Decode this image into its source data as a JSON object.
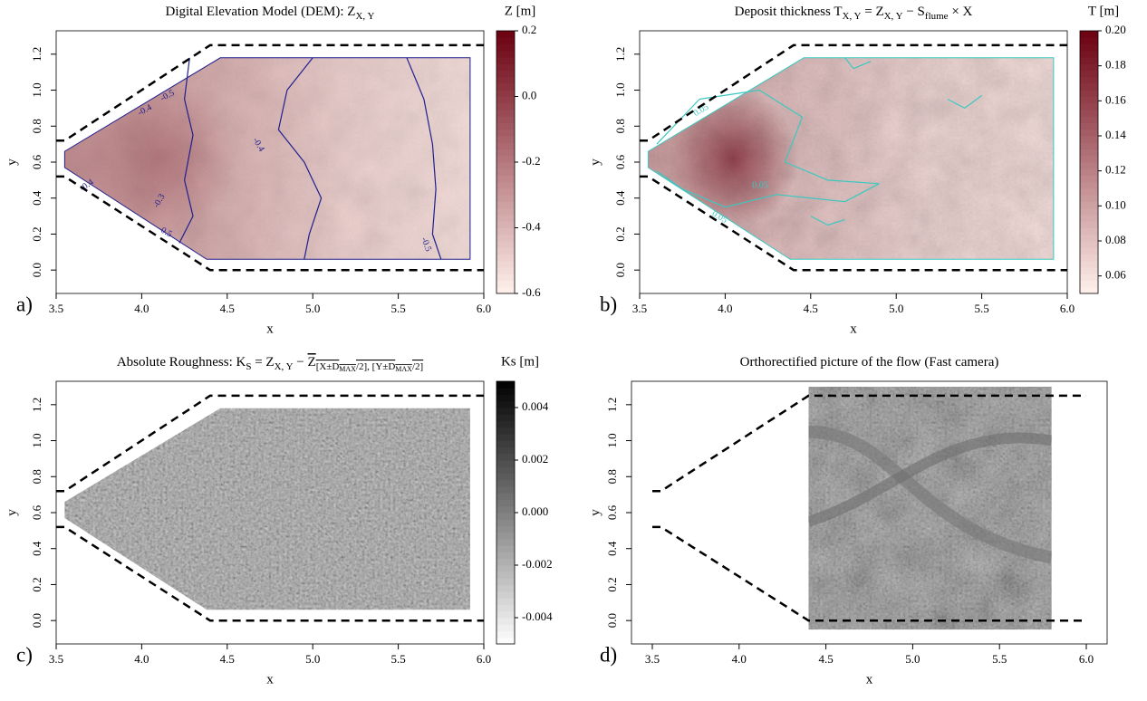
{
  "chart_data": [
    {
      "type": "heatmap",
      "panel_label": "a)",
      "title": [
        {
          "text": "Digital Elevation Model (DEM): Z"
        },
        {
          "text": "X, Y",
          "sub": 1
        }
      ],
      "xlabel": "x",
      "ylabel": "y",
      "xlim": [
        3.5,
        6.0
      ],
      "ylim": [
        -0.13,
        1.33
      ],
      "xticks": [
        3.5,
        {
          "value": 4,
          "label": "4.0"
        },
        4.5,
        {
          "value": 5,
          "label": "5.0"
        },
        5.5,
        {
          "value": 6,
          "label": "6.0"
        }
      ],
      "yticks": [
        {
          "value": 0,
          "label": "0.0"
        },
        0.2,
        0.4,
        0.6,
        0.8,
        {
          "value": 1,
          "label": "1.0"
        },
        1.2
      ],
      "colorbar": {
        "title": "Z [m]",
        "lim": [
          -0.6,
          0.2
        ],
        "colors": [
          "#fff1ec",
          "#6b0010"
        ],
        "ticks": [
          -0.6,
          -0.4,
          -0.2,
          {
            "value": 0,
            "label": "0.0"
          },
          0.2
        ]
      },
      "contour_color": "#1f1f8f",
      "contour_labels": [
        "-0.5",
        "-0.4",
        "-0.4",
        "-0.3",
        "-0.4",
        "-0.5",
        "-0.5"
      ]
    },
    {
      "type": "heatmap",
      "panel_label": "b)",
      "title": [
        {
          "text": "Deposit thickness T"
        },
        {
          "text": "X, Y",
          "sub": 1
        },
        {
          "text": " = Z"
        },
        {
          "text": "X, Y",
          "sub": 1
        },
        {
          "text": " − S"
        },
        {
          "text": "flume",
          "sub": 1
        },
        {
          "text": " × X"
        }
      ],
      "xlabel": "x",
      "ylabel": "y",
      "xlim": [
        3.5,
        6.0
      ],
      "ylim": [
        -0.13,
        1.33
      ],
      "xticks": [
        3.5,
        {
          "value": 4,
          "label": "4.0"
        },
        4.5,
        {
          "value": 5,
          "label": "5.0"
        },
        5.5,
        {
          "value": 6,
          "label": "6.0"
        }
      ],
      "yticks": [
        {
          "value": 0,
          "label": "0.0"
        },
        0.2,
        0.4,
        0.6,
        0.8,
        {
          "value": 1,
          "label": "1.0"
        },
        1.2
      ],
      "colorbar": {
        "title": "T [m]",
        "lim": [
          0.05,
          0.2
        ],
        "colors": [
          "#fff1ec",
          "#6b0010"
        ],
        "ticks": [
          0.06,
          0.08,
          {
            "value": 0.1,
            "label": "0.10"
          },
          0.12,
          0.14,
          0.16,
          0.18,
          {
            "value": 0.2,
            "label": "0.20"
          }
        ]
      },
      "contour_color": "#3cc8c0",
      "contour_labels": [
        "0.05",
        "0.05",
        "0.05"
      ]
    },
    {
      "type": "heatmap",
      "panel_label": "c)",
      "title": [
        {
          "text": "Absolute Roughness: K"
        },
        {
          "text": "S",
          "sub": 1
        },
        {
          "text": " = Z"
        },
        {
          "text": "X, Y",
          "sub": 1
        },
        {
          "text": " − "
        },
        {
          "text": "Z",
          "over": true
        },
        {
          "text": "[X±D",
          "sub": 1,
          "over": true
        },
        {
          "text": "MAX",
          "sub": 2,
          "over": true
        },
        {
          "text": "/2], [Y±D",
          "sub": 1,
          "over": true
        },
        {
          "text": "MAX",
          "sub": 2,
          "over": true
        },
        {
          "text": "/2]",
          "sub": 1,
          "over": true
        }
      ],
      "xlabel": "x",
      "ylabel": "y",
      "xlim": [
        3.5,
        6.0
      ],
      "ylim": [
        -0.13,
        1.33
      ],
      "xticks": [
        3.5,
        {
          "value": 4,
          "label": "4.0"
        },
        4.5,
        {
          "value": 5,
          "label": "5.0"
        },
        5.5,
        {
          "value": 6,
          "label": "6.0"
        }
      ],
      "yticks": [
        {
          "value": 0,
          "label": "0.0"
        },
        0.2,
        0.4,
        0.6,
        0.8,
        {
          "value": 1,
          "label": "1.0"
        },
        1.2
      ],
      "colorbar": {
        "title": "Ks [m]",
        "lim": [
          -0.005,
          0.005
        ],
        "colors": [
          "#ffffff",
          "#000000"
        ],
        "ticks": [
          -0.004,
          -0.002,
          {
            "value": 0,
            "label": "0.000"
          },
          0.002,
          0.004
        ]
      }
    },
    {
      "type": "image",
      "panel_label": "d)",
      "title": [
        {
          "text": "Orthorectified picture of the flow (Fast camera)"
        }
      ],
      "xlabel": "x",
      "ylabel": "y",
      "xlim": [
        3.38,
        6.12
      ],
      "ylim": [
        -0.13,
        1.33
      ],
      "xticks": [
        3.5,
        {
          "value": 4,
          "label": "4.0"
        },
        4.5,
        {
          "value": 5,
          "label": "5.0"
        },
        5.5,
        {
          "value": 6,
          "label": "6.0"
        }
      ],
      "yticks": [
        {
          "value": 0,
          "label": "0.0"
        },
        0.2,
        0.4,
        0.6,
        0.8,
        {
          "value": 1,
          "label": "1.0"
        },
        1.2
      ]
    }
  ]
}
